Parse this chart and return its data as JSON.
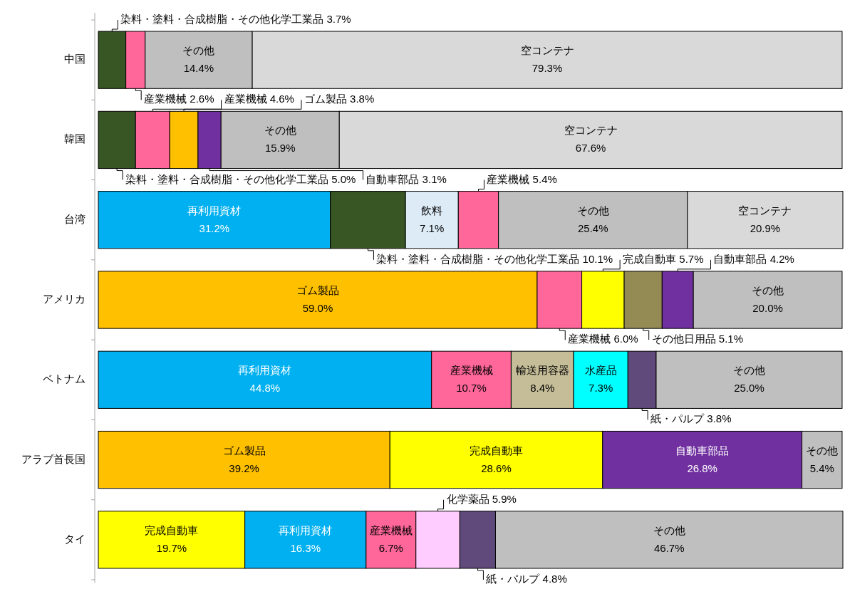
{
  "chart_data": {
    "type": "bar",
    "orientation": "horizontal",
    "stacked": true,
    "tick_labels": "y",
    "categories": [
      "中国",
      "韓国",
      "台湾",
      "アメリカ",
      "ベトナム",
      "アラブ首長国",
      "タイ"
    ],
    "series": [
      {
        "values": [
          3.7,
          5.0,
          31.2,
          59.0,
          44.8,
          39.2,
          19.7
        ],
        "colors": [
          "#375623",
          "#375623",
          "#00b0f0",
          "#ffc000",
          "#00b0f0",
          "#ffc000",
          "#ffff00"
        ],
        "value_labels": [
          "染料・塗料・合成樹脂・その他化学工業品 3.7%",
          "染料・塗料・合成樹脂・その他化学工業品 5.0%",
          "再利用資材 31.2%",
          "ゴム製品 59.0%",
          "再利用資材 44.8%",
          "ゴム製品 39.2%",
          "完成自動車 19.7%"
        ]
      },
      {
        "values": [
          2.6,
          4.6,
          10.1,
          6.0,
          10.7,
          28.6,
          16.3
        ],
        "colors": [
          "#ff6699",
          "#ff6699",
          "#375623",
          "#ff6699",
          "#ff6699",
          "#ffff00",
          "#00b0f0"
        ],
        "value_labels": [
          "産業機械 2.6%",
          "産業機械 4.6%",
          "染料・塗料・合成樹脂・その他化学工業品 10.1%",
          "産業機械 6.0%",
          "産業機械 10.7%",
          "完成自動車 28.6%",
          "再利用資材 16.3%"
        ]
      },
      {
        "values": [
          14.4,
          3.8,
          7.1,
          5.7,
          8.4,
          26.8,
          6.7
        ],
        "colors": [
          "#bfbfbf",
          "#ffc000",
          "#ddebf7",
          "#ffff00",
          "#c4bd97",
          "#7030a0",
          "#ff6699"
        ],
        "value_labels": [
          "その他 14.4%",
          "ゴム製品 3.8%",
          "飲料 7.1%",
          "完成自動車 5.7%",
          "輸送用容器 8.4%",
          "自動車部品 26.8%",
          "産業機械 6.7%"
        ]
      },
      {
        "values": [
          79.3,
          3.1,
          5.4,
          5.1,
          7.3,
          5.4,
          5.9
        ],
        "colors": [
          "#d9d9d9",
          "#7030a0",
          "#ff6699",
          "#948a54",
          "#00ffff",
          "#bfbfbf",
          "#ffccff"
        ],
        "value_labels": [
          "空コンテナ 79.3%",
          "自動車部品 3.1%",
          "産業機械 5.4%",
          "その他日用品 5.1%",
          "水産品 7.3%",
          "その他 5.4%",
          "化学薬品 5.9%"
        ]
      },
      {
        "values": [
          null,
          15.9,
          25.4,
          4.2,
          3.8,
          null,
          4.8
        ],
        "colors": [
          null,
          "#bfbfbf",
          "#bfbfbf",
          "#7030a0",
          "#604a7b",
          null,
          "#604a7b"
        ],
        "value_labels": [
          null,
          "その他 15.9%",
          "その他 25.4%",
          "自動車部品 4.2%",
          "紙・パルプ 3.8%",
          null,
          "紙・パルプ 4.8%"
        ]
      },
      {
        "values": [
          null,
          67.6,
          20.9,
          20.0,
          25.0,
          null,
          46.7
        ],
        "colors": [
          null,
          "#d9d9d9",
          "#d9d9d9",
          "#bfbfbf",
          "#bfbfbf",
          null,
          "#bfbfbf"
        ],
        "value_labels": [
          null,
          "空コンテナ 67.6%",
          "空コンテナ 20.9%",
          "その他 20.0%",
          "その他 25.0%",
          null,
          "その他 46.7%"
        ]
      }
    ]
  }
}
